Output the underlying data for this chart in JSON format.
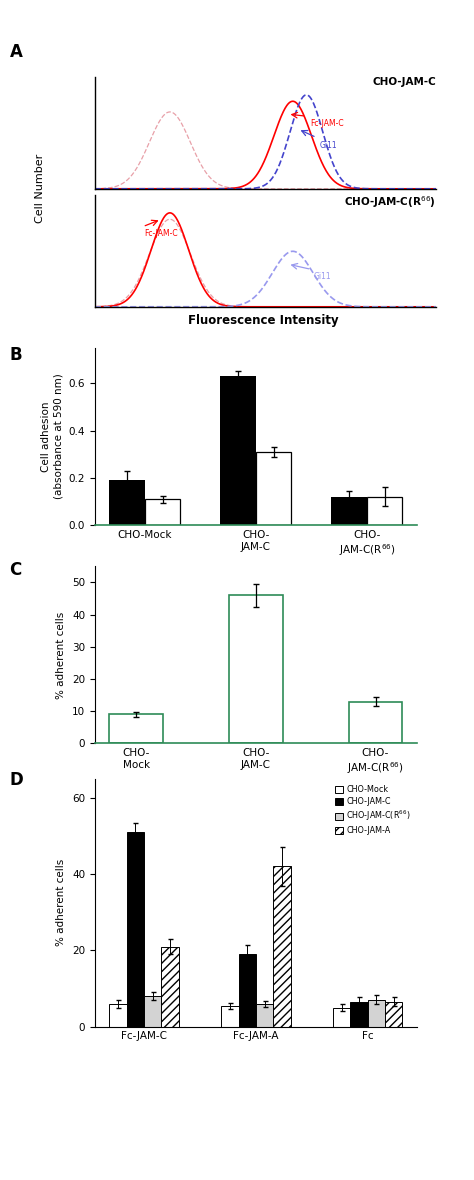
{
  "panel_A": {
    "top_label": "CHO-JAM-C",
    "bottom_label": "CHO-JAM-C(R$^{66}$)",
    "ylabel": "Cell Number",
    "xlabel": "Fluorescence Intensity",
    "top_pink_peak": {
      "mu": 0.22,
      "sigma": 0.06,
      "amp": 0.72
    },
    "top_red_peak": {
      "mu": 0.58,
      "sigma": 0.055,
      "amp": 0.82
    },
    "top_blue_peak": {
      "mu": 0.62,
      "sigma": 0.048,
      "amp": 0.88
    },
    "bottom_pink_peak": {
      "mu": 0.22,
      "sigma": 0.06,
      "amp": 0.82
    },
    "bottom_red_peak": {
      "mu": 0.22,
      "sigma": 0.055,
      "amp": 0.88
    },
    "bottom_blue_peak": {
      "mu": 0.58,
      "sigma": 0.06,
      "amp": 0.52
    }
  },
  "panel_B": {
    "ylabel": "Cell adhesion\n(absorbance at 590 nm)",
    "categories": [
      "CHO-Mock",
      "CHO-\nJAM-C",
      "CHO-\nJAM-C(R$^{66}$)"
    ],
    "black_values": [
      0.19,
      0.63,
      0.12
    ],
    "white_values": [
      0.11,
      0.31,
      0.12
    ],
    "black_errors": [
      0.04,
      0.025,
      0.025
    ],
    "white_errors": [
      0.015,
      0.02,
      0.04
    ],
    "ylim": [
      0,
      0.75
    ],
    "yticks": [
      0,
      0.2,
      0.4,
      0.6
    ]
  },
  "panel_C": {
    "ylabel": "% adherent cells",
    "categories": [
      "CHO-\nMock",
      "CHO-\nJAM-C",
      "CHO-\nJAM-C(R$^{66}$)"
    ],
    "values": [
      9.0,
      46.0,
      13.0
    ],
    "errors": [
      0.8,
      3.5,
      1.5
    ],
    "ylim": [
      0,
      55
    ],
    "yticks": [
      0,
      10,
      20,
      30,
      40,
      50
    ]
  },
  "panel_D": {
    "ylabel": "% adherent cells",
    "group_labels": [
      "Fc-JAM-C",
      "Fc-JAM-A",
      "Fc"
    ],
    "legend_labels": [
      "CHO-Mock",
      "CHO-JAM-C",
      "CHO-JAM-C(R$^{66}$)",
      "CHO-JAM-A"
    ],
    "values": {
      "Fc-JAM-C": [
        6.0,
        51.0,
        8.0,
        21.0
      ],
      "Fc-JAM-A": [
        5.5,
        19.0,
        6.0,
        42.0
      ],
      "Fc": [
        5.0,
        6.5,
        7.0,
        6.5
      ]
    },
    "errors": {
      "Fc-JAM-C": [
        1.0,
        2.5,
        1.0,
        2.0
      ],
      "Fc-JAM-A": [
        0.8,
        2.5,
        0.8,
        5.0
      ],
      "Fc": [
        0.8,
        1.2,
        1.2,
        1.2
      ]
    },
    "ylim": [
      0,
      65
    ],
    "yticks": [
      0,
      20,
      40,
      60
    ],
    "colors": [
      "white",
      "black",
      "lightgray",
      "white"
    ],
    "hatches": [
      "",
      "",
      "",
      "////"
    ]
  }
}
